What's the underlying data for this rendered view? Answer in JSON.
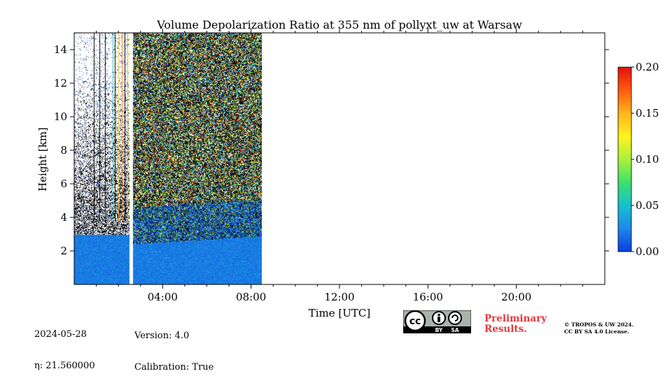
{
  "chart_data": {
    "type": "heatmap",
    "title": "Volume Depolarization Ratio at 355 nm of pollyxt_uw at Warsaw",
    "xlabel": "Time [UTC]",
    "ylabel": "Height [km]",
    "xlim_hours": [
      0,
      24
    ],
    "ylim_km": [
      0,
      15
    ],
    "x_ticks": [
      {
        "value": 4,
        "label": "04:00"
      },
      {
        "value": 8,
        "label": "08:00"
      },
      {
        "value": 12,
        "label": "12:00"
      },
      {
        "value": 16,
        "label": "16:00"
      },
      {
        "value": 20,
        "label": "20:00"
      }
    ],
    "y_ticks": [
      {
        "value": 2,
        "label": "2"
      },
      {
        "value": 4,
        "label": "4"
      },
      {
        "value": 6,
        "label": "6"
      },
      {
        "value": 8,
        "label": "8"
      },
      {
        "value": 10,
        "label": "10"
      },
      {
        "value": 12,
        "label": "12"
      },
      {
        "value": 14,
        "label": "14"
      }
    ],
    "data_time_range_hours": [
      0,
      8.5
    ],
    "data_gap_hours": [
      2.5,
      2.65
    ],
    "colorbar": {
      "range": [
        0.0,
        0.2
      ],
      "ticks": [
        {
          "value": 0.0,
          "label": "0.00"
        },
        {
          "value": 0.05,
          "label": "0.05"
        },
        {
          "value": 0.1,
          "label": "0.10"
        },
        {
          "value": 0.15,
          "label": "0.15"
        },
        {
          "value": 0.2,
          "label": "0.20"
        }
      ],
      "colors": [
        "#0a3ee0",
        "#1e88ea",
        "#13c1cf",
        "#3fe26a",
        "#a9f23a",
        "#fff21c",
        "#ffb41a",
        "#ff5a12",
        "#e21006"
      ]
    }
  },
  "meta": {
    "date": "2024-05-28",
    "eta_label": "η: 21.560000",
    "version": "Version: 4.0",
    "calibration": "Calibration: True"
  },
  "license": {
    "preliminary": "Preliminary",
    "results": "Results.",
    "copyright_line1": "© TROPOS & UW 2024.",
    "copyright_line2": "CC BY SA 4.0 License.",
    "cc_text": "cc",
    "by_text": "BY",
    "sa_text": "SA"
  }
}
